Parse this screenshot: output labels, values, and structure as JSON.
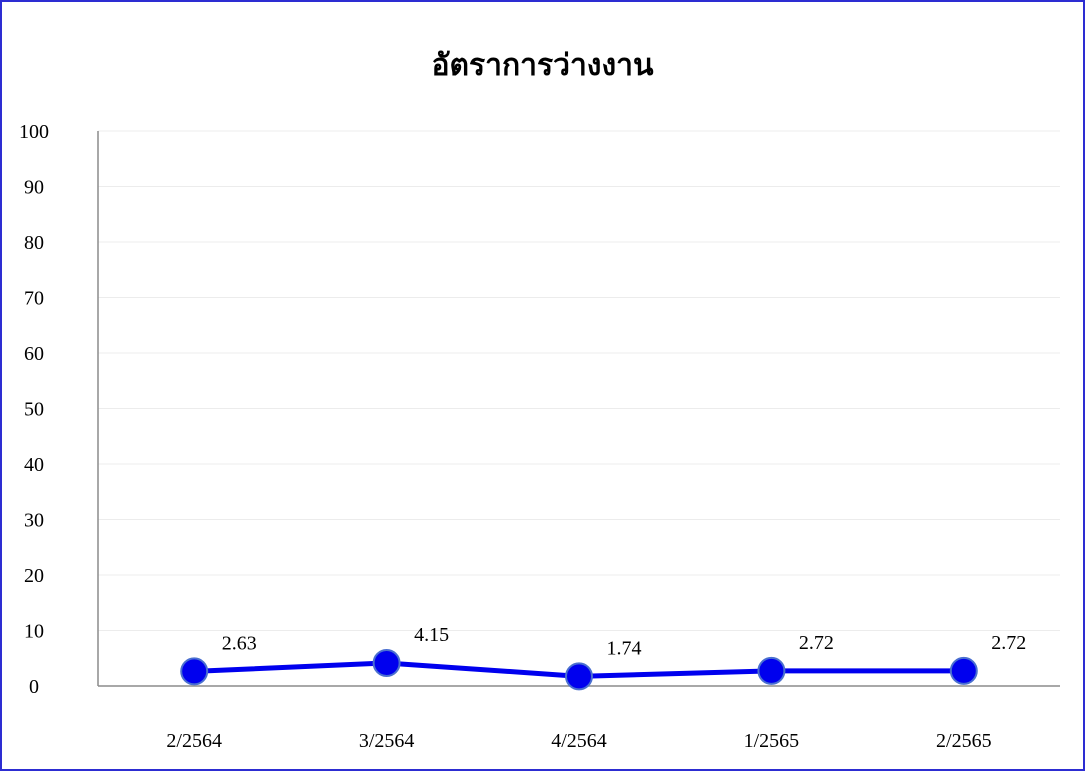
{
  "chart_data": {
    "type": "line",
    "title": "อัตราการว่างงาน",
    "xlabel": "",
    "ylabel": "",
    "categories": [
      "2/2564",
      "3/2564",
      "4/2564",
      "1/2565",
      "2/2565"
    ],
    "series": [
      {
        "values": [
          2.63,
          4.15,
          1.74,
          2.72,
          2.72
        ],
        "color": "#0000ee"
      }
    ],
    "data_labels": [
      "2.63",
      "4.15",
      "1.74",
      "2.72",
      "2.72"
    ],
    "ylim": [
      0,
      100
    ],
    "yticks": [
      0,
      10,
      20,
      30,
      40,
      50,
      60,
      70,
      80,
      90,
      100
    ],
    "grid": true,
    "legend": "none",
    "colors": {
      "frame": "#2d2dd2",
      "line": "#0000ee",
      "marker": "#0000ee",
      "grid": "#ececec",
      "axis": "#8c8c8c"
    }
  }
}
